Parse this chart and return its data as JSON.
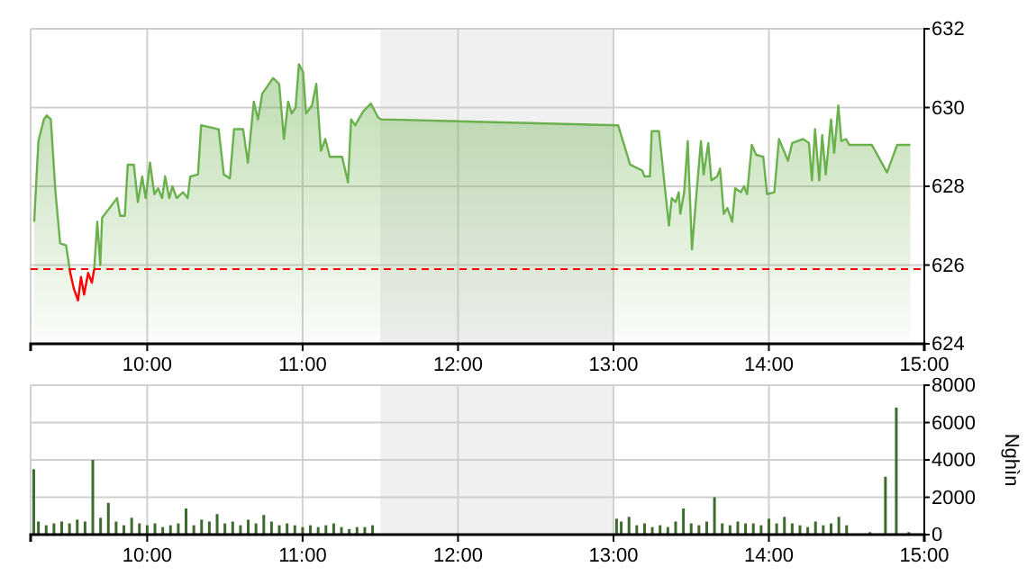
{
  "chart_data": [
    {
      "type": "area",
      "xlim": [
        9.25,
        15
      ],
      "xticks": [
        {
          "value": 10,
          "label": "10:00"
        },
        {
          "value": 11,
          "label": "11:00"
        },
        {
          "value": 12,
          "label": "12:00"
        },
        {
          "value": 13,
          "label": "13:00"
        },
        {
          "value": 14,
          "label": "14:00"
        },
        {
          "value": 15,
          "label": "15:00"
        }
      ],
      "ylim": [
        624,
        632
      ],
      "yticks": [
        624,
        626,
        628,
        630,
        632
      ],
      "grid": true,
      "bands": [
        {
          "axis": "x",
          "from": 11.5,
          "to": 13,
          "color": "#f0f0f0"
        }
      ],
      "ref_lines": [
        {
          "axis": "y",
          "value": 625.9,
          "color": "#ff0000",
          "line_style": "dashed"
        }
      ],
      "x": [
        9.273,
        9.3,
        9.335,
        9.354,
        9.38,
        9.41,
        9.44,
        9.478,
        9.505,
        9.528,
        9.555,
        9.574,
        9.594,
        9.62,
        9.644,
        9.659,
        9.679,
        9.698,
        9.71,
        9.768,
        9.806,
        9.826,
        9.856,
        9.875,
        9.914,
        9.94,
        9.968,
        9.99,
        10.018,
        10.046,
        10.07,
        10.096,
        10.115,
        10.142,
        10.162,
        10.19,
        10.23,
        10.26,
        10.277,
        10.327,
        10.347,
        10.46,
        10.493,
        10.532,
        10.559,
        10.617,
        10.648,
        10.686,
        10.713,
        10.74,
        10.81,
        10.849,
        10.88,
        10.907,
        10.93,
        10.955,
        10.976,
        11.003,
        11.022,
        11.06,
        11.088,
        11.118,
        11.146,
        11.175,
        11.254,
        11.292,
        11.312,
        11.338,
        11.389,
        11.439,
        11.486,
        11.505,
        13.03,
        13.107,
        13.185,
        13.2,
        13.235,
        13.246,
        13.293,
        13.33,
        13.357,
        13.375,
        13.4,
        13.42,
        13.43,
        13.455,
        13.478,
        13.505,
        13.532,
        13.563,
        13.58,
        13.61,
        13.63,
        13.667,
        13.686,
        13.71,
        13.733,
        13.764,
        13.783,
        13.82,
        13.84,
        13.86,
        13.89,
        13.918,
        13.964,
        13.988,
        14.035,
        14.065,
        14.123,
        14.15,
        14.22,
        14.258,
        14.277,
        14.297,
        14.324,
        14.343,
        14.366,
        14.4,
        14.42,
        14.447,
        14.466,
        14.497,
        14.517,
        14.663,
        14.76,
        14.825,
        14.91
      ],
      "series": [
        {
          "color": "#6ab04c",
          "values": [
            627.1,
            629.15,
            629.7,
            629.8,
            629.7,
            627.85,
            626.55,
            626.5,
            625.8,
            625.4,
            625.1,
            625.7,
            625.25,
            625.8,
            625.55,
            625.9,
            627.1,
            626.0,
            627.2,
            627.5,
            627.7,
            627.25,
            627.25,
            628.55,
            628.55,
            627.6,
            628.25,
            627.7,
            628.6,
            627.8,
            627.95,
            627.7,
            628.25,
            627.7,
            628.0,
            627.7,
            627.85,
            627.7,
            628.25,
            628.3,
            629.55,
            629.45,
            628.3,
            628.2,
            629.45,
            629.45,
            628.6,
            630.15,
            629.7,
            630.35,
            630.75,
            630.6,
            629.2,
            630.15,
            629.85,
            630.0,
            631.1,
            630.9,
            629.85,
            630.05,
            630.6,
            628.9,
            629.2,
            628.75,
            628.75,
            628.1,
            629.7,
            629.55,
            629.9,
            630.1,
            629.75,
            629.7,
            629.55,
            628.55,
            628.4,
            628.25,
            628.25,
            629.4,
            629.4,
            628.0,
            627.0,
            627.7,
            627.6,
            627.85,
            627.3,
            627.85,
            629.15,
            626.4,
            627.7,
            629.15,
            628.3,
            629.1,
            628.15,
            628.25,
            628.45,
            627.3,
            627.45,
            627.1,
            627.95,
            627.85,
            628.0,
            627.8,
            629.05,
            628.8,
            628.75,
            627.8,
            627.85,
            629.2,
            628.65,
            629.1,
            629.2,
            629.1,
            628.15,
            629.45,
            628.15,
            629.3,
            628.3,
            629.7,
            628.85,
            630.05,
            629.15,
            629.2,
            629.05,
            629.05,
            628.35,
            629.05,
            629.05
          ]
        }
      ]
    },
    {
      "type": "bar",
      "xlim": [
        9.25,
        15
      ],
      "xticks": [
        {
          "value": 10,
          "label": "10:00"
        },
        {
          "value": 11,
          "label": "11:00"
        },
        {
          "value": 12,
          "label": "12:00"
        },
        {
          "value": 13,
          "label": "13:00"
        },
        {
          "value": 14,
          "label": "14:00"
        },
        {
          "value": 15,
          "label": "15:00"
        }
      ],
      "ylim": [
        0,
        8000
      ],
      "yticks": [
        0,
        2000,
        4000,
        6000,
        8000
      ],
      "grid": true,
      "ylabel": "Nghìn",
      "bands": [
        {
          "axis": "x",
          "from": 11.5,
          "to": 13,
          "color": "#f0f0f0"
        }
      ],
      "x": [
        9.27,
        9.3,
        9.35,
        9.4,
        9.45,
        9.5,
        9.55,
        9.6,
        9.65,
        9.7,
        9.75,
        9.8,
        9.85,
        9.9,
        9.95,
        10,
        10.05,
        10.1,
        10.15,
        10.2,
        10.25,
        10.3,
        10.35,
        10.4,
        10.45,
        10.5,
        10.55,
        10.6,
        10.65,
        10.7,
        10.75,
        10.8,
        10.85,
        10.9,
        10.95,
        11,
        11.05,
        11.1,
        11.15,
        11.2,
        11.25,
        11.3,
        11.35,
        11.4,
        11.45,
        13.02,
        13.05,
        13.1,
        13.15,
        13.2,
        13.25,
        13.3,
        13.35,
        13.4,
        13.45,
        13.5,
        13.55,
        13.6,
        13.65,
        13.7,
        13.75,
        13.8,
        13.85,
        13.9,
        13.95,
        14,
        14.05,
        14.1,
        14.15,
        14.2,
        14.25,
        14.3,
        14.35,
        14.4,
        14.45,
        14.5,
        14.65,
        14.75,
        14.82,
        14.9
      ],
      "series": [
        {
          "color": "#3d6b2e",
          "values": [
            3500,
            700,
            500,
            600,
            700,
            600,
            800,
            700,
            4000,
            900,
            1700,
            700,
            500,
            900,
            600,
            500,
            600,
            400,
            500,
            600,
            1400,
            500,
            800,
            700,
            1100,
            600,
            700,
            500,
            800,
            600,
            1050,
            700,
            500,
            600,
            500,
            400,
            500,
            400,
            500,
            600,
            400,
            300,
            400,
            400,
            500,
            850,
            700,
            950,
            500,
            600,
            400,
            500,
            400,
            700,
            1400,
            600,
            500,
            700,
            2000,
            600,
            500,
            700,
            600,
            600,
            500,
            850,
            600,
            950,
            600,
            500,
            400,
            700,
            500,
            600,
            950,
            500,
            130,
            3100,
            6800,
            130
          ]
        }
      ]
    }
  ]
}
